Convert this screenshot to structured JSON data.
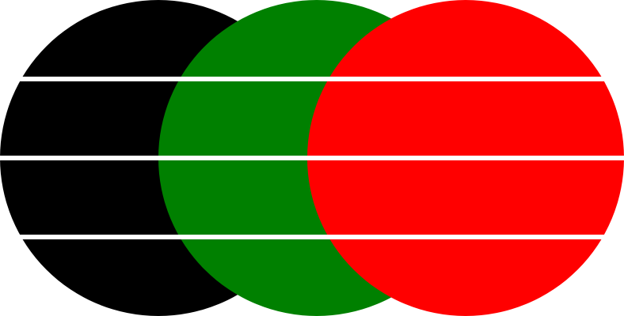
{
  "figure": {
    "background": "#ffffff",
    "circles": [
      {
        "name": "black-circle",
        "color": "#000000"
      },
      {
        "name": "green-circle",
        "color": "#008000"
      },
      {
        "name": "red-circle",
        "color": "#ff0000"
      }
    ],
    "stripe_color": "#ffffff",
    "stripe_count": 3
  }
}
